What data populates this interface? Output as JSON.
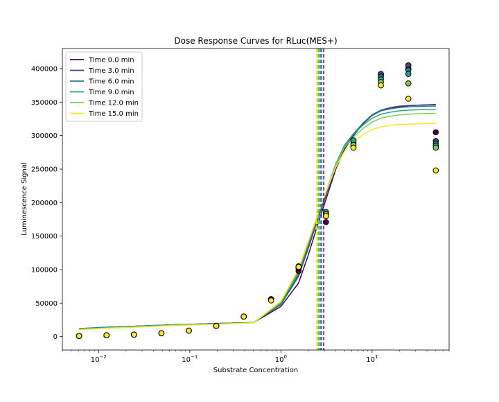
{
  "chart_data": {
    "type": "scatter",
    "title": "Dose Response Curves for RLuc(MES+)",
    "xlabel": "Substrate Concentration",
    "ylabel": "Luminescence Signal",
    "xscale": "log",
    "xlim": [
      0.004,
      70
    ],
    "ylim": [
      -20000,
      430000
    ],
    "x_ticks": [
      {
        "value": 0.01,
        "base": "10",
        "exp": "−2"
      },
      {
        "value": 0.1,
        "base": "10",
        "exp": "−1"
      },
      {
        "value": 1,
        "base": "10",
        "exp": "0"
      },
      {
        "value": 10,
        "base": "10",
        "exp": "1"
      }
    ],
    "y_ticks": [
      {
        "value": 0,
        "label": "0"
      },
      {
        "value": 50000,
        "label": "50000"
      },
      {
        "value": 100000,
        "label": "100000"
      },
      {
        "value": 150000,
        "label": "150000"
      },
      {
        "value": 200000,
        "label": "200000"
      },
      {
        "value": 250000,
        "label": "250000"
      },
      {
        "value": 300000,
        "label": "300000"
      },
      {
        "value": 350000,
        "label": "350000"
      },
      {
        "value": 400000,
        "label": "400000"
      }
    ],
    "grid": false,
    "legend_position": "top-left",
    "x": [
      0.0061,
      0.0122,
      0.0244,
      0.0488,
      0.0977,
      0.195,
      0.391,
      0.781,
      1.5625,
      3.125,
      6.25,
      12.5,
      25,
      50
    ],
    "fit_x": [
      0.0061,
      0.0122,
      0.0244,
      0.0488,
      0.0977,
      0.195,
      0.391,
      0.5,
      1.0,
      1.5625,
      2.0,
      2.5,
      3.125,
      4.0,
      5.0,
      6.25,
      8.0,
      10.0,
      12.5,
      16.0,
      20.0,
      25.0,
      32.0,
      40.0,
      50.0
    ],
    "series": [
      {
        "name": "Time 0.0 min",
        "color": "#440154",
        "ec50": 2.95,
        "points": [
          1000,
          2000,
          3000,
          5000,
          9000,
          16000,
          30000,
          55000,
          98000,
          171000,
          283000,
          390000,
          400000,
          305000
        ],
        "fit_y": [
          12000,
          13800,
          15500,
          17000,
          18300,
          19500,
          20600,
          21000,
          45000,
          80000,
          122000,
          165000,
          205000,
          250000,
          280000,
          300000,
          318000,
          330000,
          337000,
          341000,
          343000,
          344500,
          345500,
          346000,
          346500
        ]
      },
      {
        "name": "Time 3.0 min",
        "color": "#414487",
        "ec50": 2.8,
        "points": [
          1000,
          2000,
          3000,
          5000,
          9000,
          16000,
          30000,
          56000,
          102000,
          180000,
          288000,
          392000,
          405000,
          292000
        ],
        "fit_y": [
          12000,
          13800,
          15500,
          17000,
          18300,
          19500,
          20600,
          21000,
          48000,
          90000,
          132000,
          172000,
          211000,
          254000,
          283000,
          302000,
          319000,
          331000,
          338000,
          342000,
          344000,
          345000,
          345500,
          346000,
          346000
        ]
      },
      {
        "name": "Time 6.0 min",
        "color": "#2a788e",
        "ec50": 2.7,
        "points": [
          1000,
          2000,
          3000,
          5000,
          9000,
          16000,
          30000,
          56000,
          103000,
          184000,
          291000,
          388000,
          398000,
          288000
        ],
        "fit_y": [
          12000,
          13800,
          15500,
          17000,
          18300,
          19500,
          20600,
          21000,
          49000,
          93000,
          136000,
          175000,
          214000,
          257000,
          286000,
          303000,
          319000,
          330000,
          337000,
          340000,
          342000,
          343000,
          343500,
          344000,
          344000
        ]
      },
      {
        "name": "Time 9.0 min",
        "color": "#22a884",
        "ec50": 2.6,
        "points": [
          1000,
          2000,
          3000,
          5000,
          9000,
          16000,
          30000,
          55000,
          104000,
          186000,
          293000,
          384000,
          392000,
          285000
        ],
        "fit_y": [
          11500,
          13300,
          15000,
          16600,
          17900,
          19100,
          20300,
          20900,
          50000,
          96000,
          139000,
          178000,
          216000,
          258000,
          286000,
          302000,
          316000,
          326000,
          332000,
          335000,
          337000,
          338000,
          338500,
          339000,
          339000
        ]
      },
      {
        "name": "Time 12.0 min",
        "color": "#7ad151",
        "ec50": 2.55,
        "points": [
          1000,
          2000,
          3000,
          5000,
          9000,
          16000,
          30000,
          55000,
          105000,
          183000,
          286000,
          380000,
          378000,
          282000
        ],
        "fit_y": [
          11000,
          12800,
          14500,
          16200,
          17600,
          18800,
          20100,
          20800,
          52000,
          99000,
          141000,
          179000,
          216000,
          256000,
          283000,
          298000,
          311000,
          320000,
          326000,
          329000,
          331000,
          332000,
          332500,
          333000,
          333000
        ]
      },
      {
        "name": "Time 15.0 min",
        "color": "#fde725",
        "ec50": 2.45,
        "points": [
          1000,
          2000,
          3000,
          5000,
          9000,
          16000,
          30000,
          54000,
          104000,
          180000,
          282000,
          375000,
          355000,
          248000
        ],
        "fit_y": [
          10500,
          12300,
          14000,
          15700,
          17200,
          18500,
          19800,
          20600,
          53000,
          101000,
          143000,
          180000,
          216000,
          253000,
          277000,
          290000,
          302000,
          309000,
          313000,
          315500,
          316500,
          317000,
          317500,
          318000,
          318000
        ]
      }
    ]
  }
}
